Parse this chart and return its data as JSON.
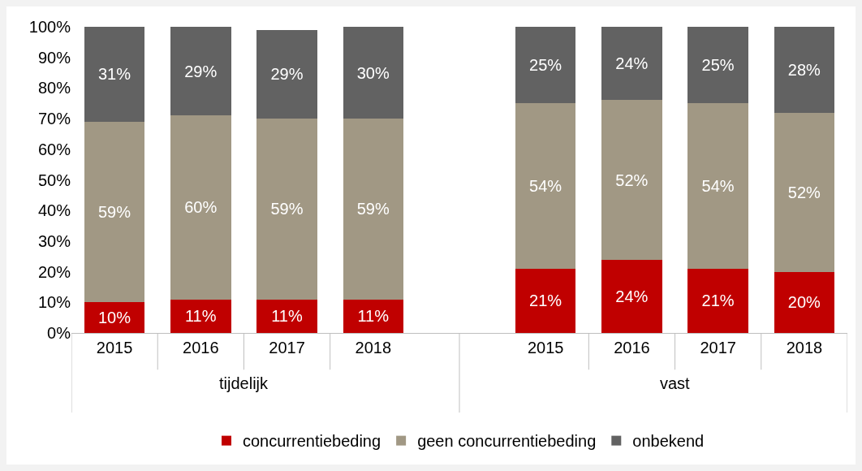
{
  "chart_data": {
    "type": "bar",
    "stacked": true,
    "categories": [
      "2015",
      "2016",
      "2017",
      "2018",
      null,
      "2015",
      "2016",
      "2017",
      "2018"
    ],
    "series": [
      {
        "name": "concurrentiebeding",
        "color": "#c00000",
        "values": [
          10,
          11,
          11,
          11,
          null,
          21,
          24,
          21,
          20
        ],
        "value_labels": [
          "10%",
          "11%",
          "11%",
          "11%",
          null,
          "21%",
          "24%",
          "21%",
          "20%"
        ]
      },
      {
        "name": "geen concurrentiebeding",
        "color": "#a19884",
        "values": [
          59,
          60,
          59,
          59,
          null,
          54,
          52,
          54,
          52
        ],
        "value_labels": [
          "59%",
          "60%",
          "59%",
          "59%",
          null,
          "54%",
          "52%",
          "54%",
          "52%"
        ]
      },
      {
        "name": "onbekend",
        "color": "#626262",
        "values": [
          31,
          29,
          29,
          30,
          null,
          25,
          24,
          25,
          28
        ],
        "value_labels": [
          "31%",
          "29%",
          "29%",
          "30%",
          null,
          "25%",
          "24%",
          "25%",
          "28%"
        ]
      }
    ],
    "annotations": [
      "tijdelijk",
      "vast"
    ],
    "ylim": [
      0,
      100
    ],
    "yticks": [
      {
        "value": 0,
        "label": "0%"
      },
      {
        "value": 10,
        "label": "10%"
      },
      {
        "value": 20,
        "label": "20%"
      },
      {
        "value": 30,
        "label": "30%"
      },
      {
        "value": 40,
        "label": "40%"
      },
      {
        "value": 50,
        "label": "50%"
      },
      {
        "value": 60,
        "label": "60%"
      },
      {
        "value": 70,
        "label": "70%"
      },
      {
        "value": 80,
        "label": "80%"
      },
      {
        "value": 90,
        "label": "90%"
      },
      {
        "value": 100,
        "label": "100%"
      }
    ],
    "grid": false,
    "legend": "bottom"
  }
}
